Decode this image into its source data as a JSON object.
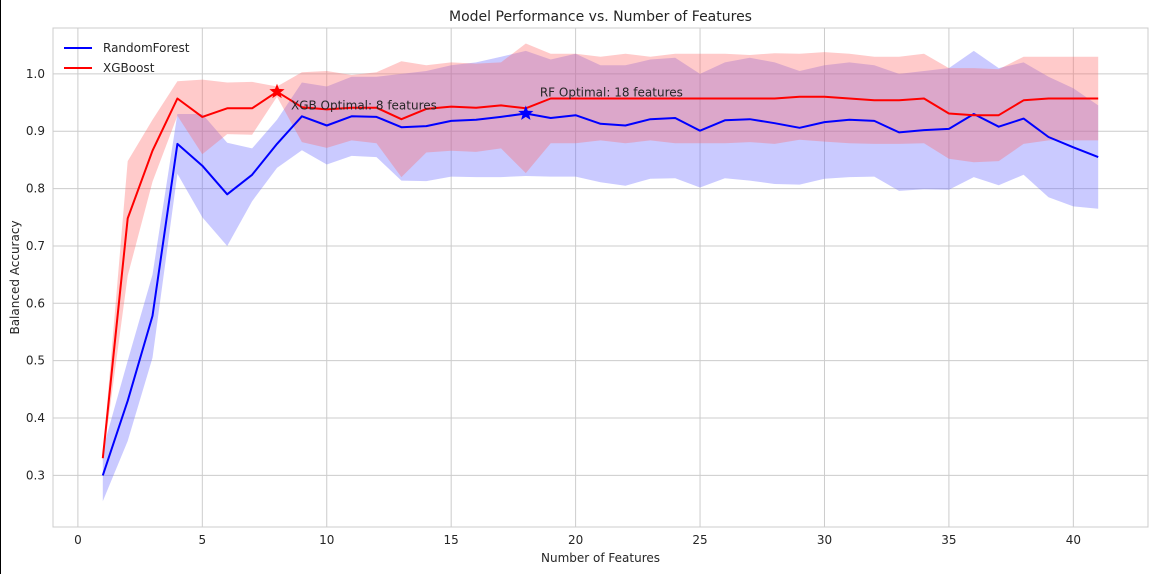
{
  "chart_data": {
    "type": "line",
    "title": "Model Performance vs. Number of Features",
    "xlabel": "Number of Features",
    "ylabel": "Balanced Accuracy",
    "xlim": [
      -1,
      43
    ],
    "ylim": [
      0.21,
      1.08
    ],
    "xticks": [
      0,
      5,
      10,
      15,
      20,
      25,
      30,
      35,
      40
    ],
    "yticks": [
      0.3,
      0.4,
      0.5,
      0.6,
      0.7,
      0.8,
      0.9,
      1.0
    ],
    "xtick_labels": [
      "0",
      "5",
      "10",
      "15",
      "20",
      "25",
      "30",
      "35",
      "40"
    ],
    "ytick_labels": [
      "0.3",
      "0.4",
      "0.5",
      "0.6",
      "0.7",
      "0.8",
      "0.9",
      "1.0"
    ],
    "grid": true,
    "legend": "top-left",
    "x": [
      1,
      2,
      3,
      4,
      5,
      6,
      7,
      8,
      9,
      10,
      11,
      12,
      13,
      14,
      15,
      16,
      17,
      18,
      19,
      20,
      21,
      22,
      23,
      24,
      25,
      26,
      27,
      28,
      29,
      30,
      31,
      32,
      33,
      34,
      35,
      36,
      37,
      38,
      39,
      40,
      41
    ],
    "series": [
      {
        "name": "RandomForest",
        "color": "#0000ff",
        "band_color": "#6666ff",
        "values": [
          0.3,
          0.43,
          0.578,
          0.878,
          0.84,
          0.79,
          0.824,
          0.878,
          0.926,
          0.91,
          0.926,
          0.925,
          0.907,
          0.909,
          0.918,
          0.92,
          0.925,
          0.931,
          0.923,
          0.928,
          0.913,
          0.91,
          0.921,
          0.923,
          0.901,
          0.919,
          0.921,
          0.914,
          0.906,
          0.916,
          0.92,
          0.918,
          0.898,
          0.902,
          0.904,
          0.93,
          0.908,
          0.922,
          0.89,
          0.872,
          0.855
        ],
        "upper": [
          0.345,
          0.5,
          0.65,
          0.93,
          0.93,
          0.88,
          0.87,
          0.92,
          0.985,
          0.978,
          0.995,
          0.995,
          1.0,
          1.005,
          1.015,
          1.02,
          1.03,
          1.04,
          1.025,
          1.035,
          1.015,
          1.015,
          1.025,
          1.028,
          1.0,
          1.02,
          1.028,
          1.02,
          1.005,
          1.015,
          1.02,
          1.015,
          1.0,
          1.005,
          1.01,
          1.04,
          1.01,
          1.02,
          0.995,
          0.975,
          0.945
        ],
        "lower": [
          0.255,
          0.36,
          0.505,
          0.826,
          0.75,
          0.7,
          0.778,
          0.836,
          0.867,
          0.842,
          0.857,
          0.855,
          0.814,
          0.813,
          0.821,
          0.82,
          0.82,
          0.822,
          0.821,
          0.821,
          0.811,
          0.805,
          0.817,
          0.818,
          0.802,
          0.818,
          0.814,
          0.808,
          0.807,
          0.817,
          0.82,
          0.821,
          0.796,
          0.799,
          0.798,
          0.82,
          0.806,
          0.824,
          0.785,
          0.769,
          0.765
        ]
      },
      {
        "name": "XGBoost",
        "color": "#ff0000",
        "band_color": "#ff6666",
        "values": [
          0.33,
          0.748,
          0.866,
          0.957,
          0.925,
          0.94,
          0.94,
          0.969,
          0.942,
          0.938,
          0.941,
          0.941,
          0.921,
          0.939,
          0.943,
          0.941,
          0.945,
          0.94,
          0.957,
          0.957,
          0.957,
          0.957,
          0.957,
          0.957,
          0.957,
          0.957,
          0.957,
          0.957,
          0.96,
          0.96,
          0.957,
          0.954,
          0.954,
          0.957,
          0.931,
          0.928,
          0.928,
          0.954,
          0.957,
          0.957,
          0.957
        ],
        "upper": [
          0.335,
          0.848,
          0.92,
          0.987,
          0.99,
          0.985,
          0.986,
          0.978,
          1.003,
          1.005,
          0.998,
          1.003,
          1.022,
          1.015,
          1.02,
          1.018,
          1.02,
          1.053,
          1.035,
          1.035,
          1.03,
          1.035,
          1.03,
          1.035,
          1.035,
          1.035,
          1.033,
          1.036,
          1.035,
          1.038,
          1.035,
          1.03,
          1.03,
          1.035,
          1.01,
          1.01,
          1.008,
          1.03,
          1.03,
          1.03,
          1.03
        ],
        "lower": [
          0.325,
          0.648,
          0.812,
          0.927,
          0.86,
          0.895,
          0.894,
          0.96,
          0.881,
          0.871,
          0.884,
          0.879,
          0.82,
          0.863,
          0.866,
          0.864,
          0.87,
          0.827,
          0.879,
          0.879,
          0.884,
          0.879,
          0.884,
          0.879,
          0.879,
          0.879,
          0.881,
          0.878,
          0.885,
          0.882,
          0.879,
          0.878,
          0.878,
          0.879,
          0.852,
          0.846,
          0.848,
          0.878,
          0.884,
          0.884,
          0.884
        ]
      }
    ],
    "optimal_markers": [
      {
        "series": "XGBoost",
        "x": 8,
        "y": 0.969,
        "label": "XGB Optimal: 8 features",
        "color": "#ff0000"
      },
      {
        "series": "RandomForest",
        "x": 18,
        "y": 0.931,
        "label": "RF Optimal: 18 features",
        "color": "#0000ff"
      }
    ]
  }
}
